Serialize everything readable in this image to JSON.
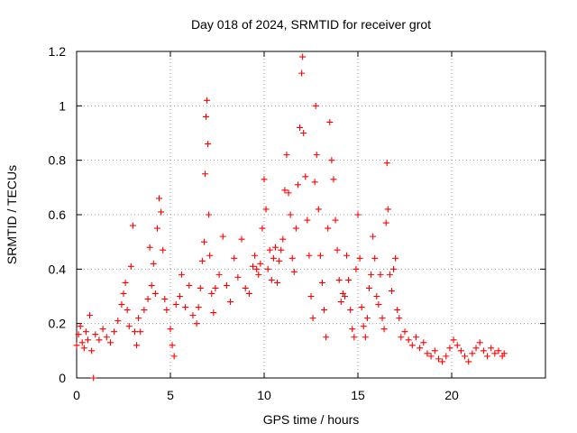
{
  "chart_data": {
    "type": "scatter",
    "title": "Day 018 of 2024, SRMTID for receiver grot",
    "xlabel": "GPS time / hours",
    "ylabel": "SRMTID / TECUs",
    "xlim": [
      0,
      25
    ],
    "ylim": [
      0,
      1.2
    ],
    "x_ticks": [
      0,
      5,
      10,
      15,
      20
    ],
    "x_tick_labels": [
      "0",
      "5",
      "10",
      "15",
      "20"
    ],
    "y_ticks": [
      0,
      0.2,
      0.4,
      0.6,
      0.8,
      1.0,
      1.2
    ],
    "y_tick_labels": [
      "0",
      "0.2",
      "0.4",
      "0.6",
      "0.8",
      "1",
      "1.2"
    ],
    "grid": true,
    "marker": "+",
    "color": "#ff0000",
    "series": [
      {
        "name": "SRMTID",
        "points": [
          [
            0.0,
            0.12
          ],
          [
            0.1,
            0.16
          ],
          [
            0.2,
            0.19
          ],
          [
            0.3,
            0.13
          ],
          [
            0.4,
            0.11
          ],
          [
            0.5,
            0.17
          ],
          [
            0.6,
            0.14
          ],
          [
            0.7,
            0.23
          ],
          [
            0.8,
            0.1
          ],
          [
            0.9,
            0.0
          ],
          [
            1.0,
            0.16
          ],
          [
            1.2,
            0.14
          ],
          [
            1.4,
            0.18
          ],
          [
            1.6,
            0.15
          ],
          [
            1.8,
            0.13
          ],
          [
            2.0,
            0.17
          ],
          [
            2.2,
            0.21
          ],
          [
            2.4,
            0.27
          ],
          [
            2.5,
            0.31
          ],
          [
            2.6,
            0.35
          ],
          [
            2.7,
            0.25
          ],
          [
            2.8,
            0.19
          ],
          [
            2.9,
            0.41
          ],
          [
            3.0,
            0.56
          ],
          [
            3.1,
            0.17
          ],
          [
            3.2,
            0.12
          ],
          [
            3.3,
            0.22
          ],
          [
            3.4,
            0.17
          ],
          [
            3.6,
            0.25
          ],
          [
            3.8,
            0.29
          ],
          [
            3.9,
            0.48
          ],
          [
            4.0,
            0.34
          ],
          [
            4.1,
            0.42
          ],
          [
            4.2,
            0.31
          ],
          [
            4.3,
            0.55
          ],
          [
            4.4,
            0.66
          ],
          [
            4.5,
            0.61
          ],
          [
            4.6,
            0.47
          ],
          [
            4.7,
            0.29
          ],
          [
            4.8,
            0.25
          ],
          [
            5.0,
            0.18
          ],
          [
            5.1,
            0.12
          ],
          [
            5.2,
            0.08
          ],
          [
            5.3,
            0.27
          ],
          [
            5.5,
            0.3
          ],
          [
            5.6,
            0.38
          ],
          [
            5.8,
            0.26
          ],
          [
            6.0,
            0.34
          ],
          [
            6.2,
            0.23
          ],
          [
            6.4,
            0.2
          ],
          [
            6.5,
            0.26
          ],
          [
            6.6,
            0.33
          ],
          [
            6.7,
            0.43
          ],
          [
            6.8,
            0.5
          ],
          [
            6.85,
            0.75
          ],
          [
            6.9,
            0.96
          ],
          [
            6.95,
            1.02
          ],
          [
            7.0,
            0.86
          ],
          [
            7.05,
            0.6
          ],
          [
            7.1,
            0.45
          ],
          [
            7.2,
            0.31
          ],
          [
            7.3,
            0.24
          ],
          [
            7.4,
            0.33
          ],
          [
            7.6,
            0.38
          ],
          [
            7.8,
            0.52
          ],
          [
            8.0,
            0.34
          ],
          [
            8.2,
            0.28
          ],
          [
            8.4,
            0.44
          ],
          [
            8.6,
            0.37
          ],
          [
            8.8,
            0.51
          ],
          [
            9.0,
            0.33
          ],
          [
            9.2,
            0.31
          ],
          [
            9.4,
            0.41
          ],
          [
            9.5,
            0.45
          ],
          [
            9.6,
            0.4
          ],
          [
            9.7,
            0.38
          ],
          [
            9.8,
            0.42
          ],
          [
            9.9,
            0.55
          ],
          [
            10.0,
            0.73
          ],
          [
            10.1,
            0.62
          ],
          [
            10.2,
            0.4
          ],
          [
            10.3,
            0.47
          ],
          [
            10.4,
            0.36
          ],
          [
            10.5,
            0.44
          ],
          [
            10.6,
            0.48
          ],
          [
            10.7,
            0.35
          ],
          [
            10.8,
            0.43
          ],
          [
            10.9,
            0.47
          ],
          [
            11.0,
            0.51
          ],
          [
            11.1,
            0.69
          ],
          [
            11.2,
            0.82
          ],
          [
            11.3,
            0.68
          ],
          [
            11.4,
            0.6
          ],
          [
            11.5,
            0.44
          ],
          [
            11.6,
            0.39
          ],
          [
            11.7,
            0.55
          ],
          [
            11.8,
            0.71
          ],
          [
            11.9,
            0.92
          ],
          [
            12.0,
            1.12
          ],
          [
            12.05,
            1.18
          ],
          [
            12.1,
            0.9
          ],
          [
            12.2,
            0.74
          ],
          [
            12.3,
            0.58
          ],
          [
            12.4,
            0.45
          ],
          [
            12.5,
            0.3
          ],
          [
            12.6,
            0.22
          ],
          [
            12.7,
            0.72
          ],
          [
            12.75,
            1.0
          ],
          [
            12.8,
            0.82
          ],
          [
            12.9,
            0.62
          ],
          [
            13.0,
            0.45
          ],
          [
            13.1,
            0.35
          ],
          [
            13.2,
            0.25
          ],
          [
            13.3,
            0.15
          ],
          [
            13.4,
            0.55
          ],
          [
            13.5,
            0.94
          ],
          [
            13.6,
            0.8
          ],
          [
            13.7,
            0.73
          ],
          [
            13.8,
            0.58
          ],
          [
            13.9,
            0.47
          ],
          [
            14.0,
            0.36
          ],
          [
            14.1,
            0.28
          ],
          [
            14.2,
            0.31
          ],
          [
            14.3,
            0.3
          ],
          [
            14.4,
            0.45
          ],
          [
            14.5,
            0.36
          ],
          [
            14.6,
            0.25
          ],
          [
            14.7,
            0.18
          ],
          [
            14.8,
            0.15
          ],
          [
            14.9,
            0.4
          ],
          [
            15.0,
            0.6
          ],
          [
            15.1,
            0.44
          ],
          [
            15.2,
            0.26
          ],
          [
            15.3,
            0.19
          ],
          [
            15.4,
            0.15
          ],
          [
            15.5,
            0.22
          ],
          [
            15.6,
            0.33
          ],
          [
            15.7,
            0.38
          ],
          [
            15.8,
            0.52
          ],
          [
            15.9,
            0.44
          ],
          [
            16.0,
            0.3
          ],
          [
            16.1,
            0.27
          ],
          [
            16.2,
            0.38
          ],
          [
            16.3,
            0.22
          ],
          [
            16.4,
            0.18
          ],
          [
            16.5,
            0.57
          ],
          [
            16.55,
            0.79
          ],
          [
            16.6,
            0.62
          ],
          [
            16.7,
            0.38
          ],
          [
            16.8,
            0.32
          ],
          [
            16.9,
            0.4
          ],
          [
            17.0,
            0.44
          ],
          [
            17.1,
            0.25
          ],
          [
            17.2,
            0.22
          ],
          [
            17.3,
            0.15
          ],
          [
            17.5,
            0.17
          ],
          [
            17.7,
            0.14
          ],
          [
            17.9,
            0.12
          ],
          [
            18.1,
            0.15
          ],
          [
            18.3,
            0.11
          ],
          [
            18.5,
            0.13
          ],
          [
            18.7,
            0.09
          ],
          [
            18.9,
            0.08
          ],
          [
            19.1,
            0.1
          ],
          [
            19.3,
            0.07
          ],
          [
            19.5,
            0.06
          ],
          [
            19.7,
            0.08
          ],
          [
            19.9,
            0.11
          ],
          [
            20.1,
            0.14
          ],
          [
            20.3,
            0.12
          ],
          [
            20.5,
            0.1
          ],
          [
            20.7,
            0.08
          ],
          [
            20.9,
            0.06
          ],
          [
            21.1,
            0.09
          ],
          [
            21.3,
            0.11
          ],
          [
            21.5,
            0.13
          ],
          [
            21.7,
            0.1
          ],
          [
            21.9,
            0.08
          ],
          [
            22.1,
            0.11
          ],
          [
            22.3,
            0.09
          ],
          [
            22.5,
            0.1
          ],
          [
            22.7,
            0.08
          ],
          [
            22.8,
            0.09
          ]
        ]
      }
    ]
  }
}
